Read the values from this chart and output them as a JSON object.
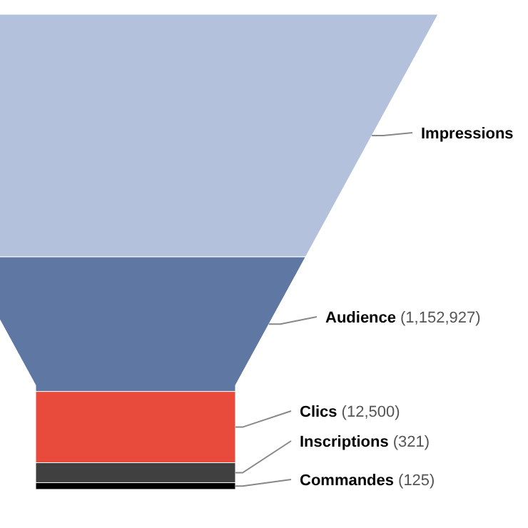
{
  "chart_data": {
    "type": "other",
    "categories": [
      "Impressions",
      "Audience",
      "Clics",
      "Inscriptions",
      "Commandes"
    ],
    "values": [
      null,
      1152927,
      12500,
      321,
      125
    ],
    "value_labels": [
      null,
      "(1,152,927)",
      "(12,500)",
      "(321)",
      "(125)"
    ],
    "colors": [
      "#b3c1dc",
      "#5f77a3",
      "#e84a3c",
      "#404040",
      "#000000"
    ]
  }
}
